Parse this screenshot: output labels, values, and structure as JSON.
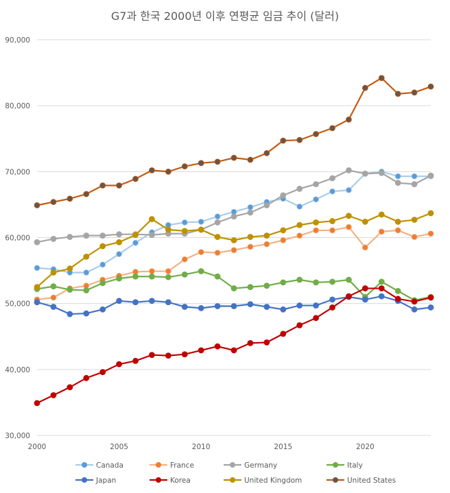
{
  "chart_data": {
    "type": "line",
    "title": "G7과 한국 2000년 이후 연평균 임금 추이 (달러)",
    "xlabel": "",
    "ylabel": "",
    "xlim": [
      2000,
      2024
    ],
    "ylim": [
      30000,
      90000
    ],
    "x_ticks": [
      "2000",
      "2005",
      "2010",
      "2015",
      "2020"
    ],
    "y_ticks": [
      "30,000",
      "40,000",
      "50,000",
      "60,000",
      "70,000",
      "80,000",
      "90,000"
    ],
    "grid": true,
    "legend_position": "bottom",
    "x": [
      2000,
      2001,
      2002,
      2003,
      2004,
      2005,
      2006,
      2007,
      2008,
      2009,
      2010,
      2011,
      2012,
      2013,
      2014,
      2015,
      2016,
      2017,
      2018,
      2019,
      2020,
      2021,
      2022,
      2023,
      2024
    ],
    "series": [
      {
        "name": "Canada",
        "line_color": "#A9CCEA",
        "marker_color": "#5B9BD5",
        "values": [
          55400,
          55200,
          54700,
          54700,
          55900,
          57500,
          59200,
          60800,
          61900,
          62300,
          62400,
          63200,
          63900,
          64600,
          65400,
          65900,
          64700,
          65800,
          67000,
          67200,
          69700,
          70000,
          69300,
          69300,
          69300
        ]
      },
      {
        "name": "France",
        "line_color": "#F4B183",
        "marker_color": "#ED7D31",
        "values": [
          50600,
          50900,
          52300,
          52700,
          53600,
          54200,
          54800,
          54900,
          54900,
          56700,
          57800,
          57700,
          58100,
          58600,
          59000,
          59600,
          60300,
          61100,
          61100,
          61600,
          58500,
          60900,
          61100,
          60100,
          60600
        ]
      },
      {
        "name": "Germany",
        "line_color": "#A5A5A5",
        "marker_color": "#A5A5A5",
        "values": [
          59300,
          59800,
          60100,
          60300,
          60300,
          60500,
          60500,
          60400,
          60600,
          60600,
          61200,
          62300,
          63200,
          63800,
          64900,
          66400,
          67400,
          68100,
          69000,
          70200,
          69700,
          69800,
          68300,
          68100,
          69400
        ]
      },
      {
        "name": "Italy",
        "line_color": "#70AD47",
        "marker_color": "#70AD47",
        "values": [
          52200,
          52600,
          52100,
          52000,
          53100,
          53800,
          54100,
          54100,
          54000,
          54400,
          54900,
          54100,
          52300,
          52500,
          52700,
          53200,
          53600,
          53200,
          53300,
          53600,
          51000,
          53300,
          51900,
          50500,
          51000
        ]
      },
      {
        "name": "Japan",
        "line_color": "#4472C4",
        "marker_color": "#4472C4",
        "values": [
          50200,
          49500,
          48400,
          48500,
          49100,
          50400,
          50200,
          50400,
          50200,
          49500,
          49300,
          49600,
          49600,
          49900,
          49500,
          49100,
          49700,
          49700,
          50600,
          51000,
          50600,
          51100,
          50400,
          49100,
          49400
        ]
      },
      {
        "name": "Korea",
        "line_color": "#C00000",
        "marker_color": "#C00000",
        "values": [
          34900,
          36100,
          37300,
          38700,
          39600,
          40800,
          41300,
          42200,
          42100,
          42300,
          42900,
          43500,
          42900,
          44000,
          44100,
          45400,
          46700,
          47800,
          49400,
          51100,
          52300,
          52300,
          50700,
          50300,
          50900
        ]
      },
      {
        "name": "United Kingdom",
        "line_color": "#BF9000",
        "marker_color": "#BF9000",
        "values": [
          52500,
          54700,
          55300,
          57100,
          58700,
          59300,
          60400,
          62800,
          61200,
          61000,
          61200,
          60100,
          59600,
          60100,
          60300,
          61100,
          61900,
          62300,
          62500,
          63300,
          62400,
          63500,
          62400,
          62700,
          63700
        ]
      },
      {
        "name": "United States",
        "line_color": "#C55A11",
        "marker_color": "#6B5548",
        "values": [
          64900,
          65400,
          65900,
          66600,
          67900,
          67900,
          68900,
          70200,
          70000,
          70800,
          71300,
          71500,
          72100,
          71800,
          72800,
          74700,
          74800,
          75700,
          76600,
          77900,
          82700,
          84200,
          81800,
          82000,
          82900
        ]
      }
    ]
  }
}
